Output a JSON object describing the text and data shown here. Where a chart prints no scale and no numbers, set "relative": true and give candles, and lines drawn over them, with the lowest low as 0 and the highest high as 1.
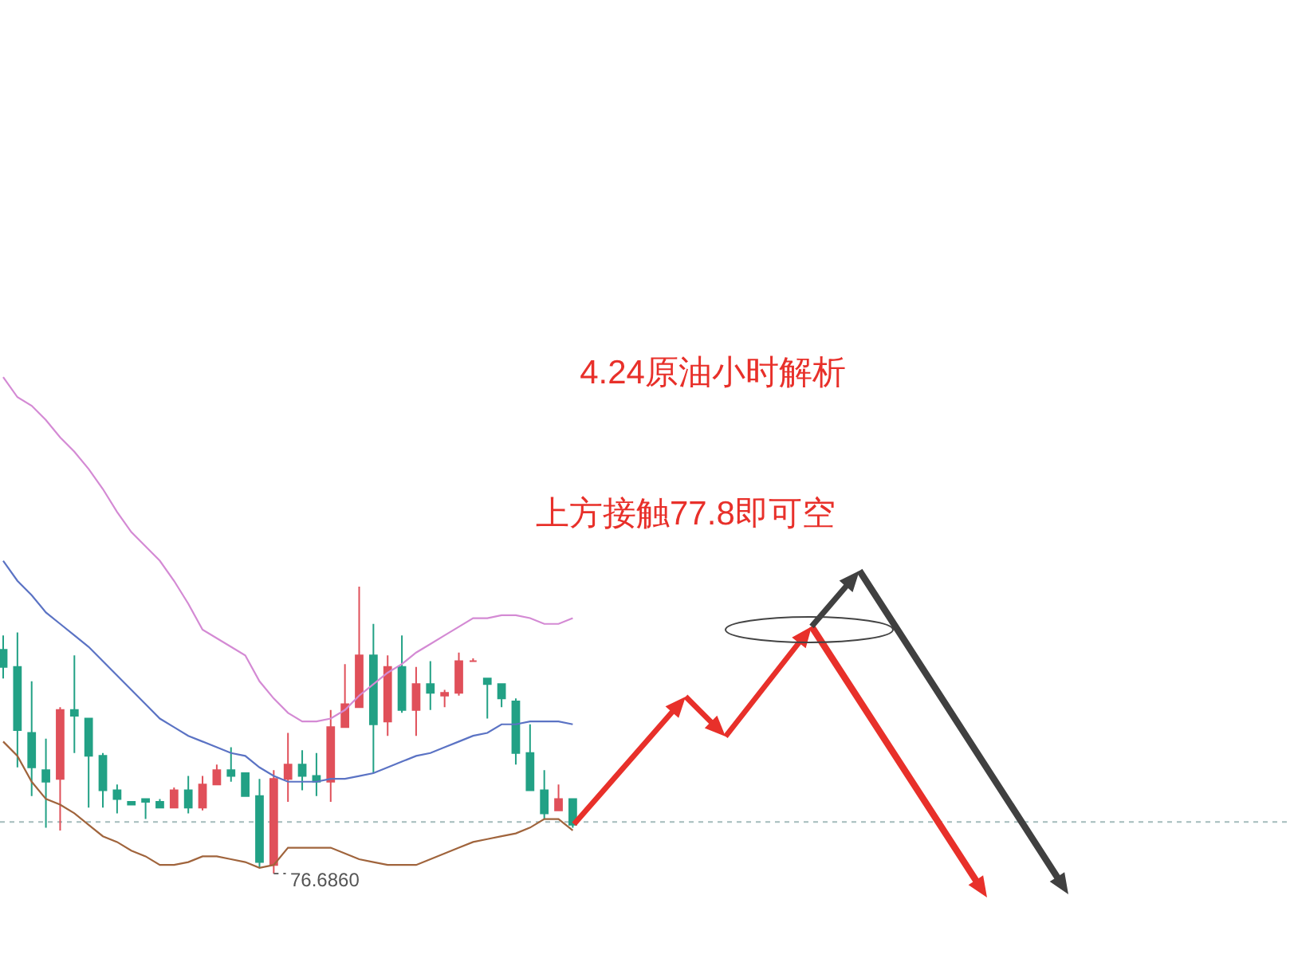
{
  "chart_data": {
    "type": "candlestick",
    "title": "4.24原油小时解析",
    "relative": true,
    "categories": [
      null,
      null,
      null,
      null,
      null,
      null,
      null,
      null,
      null,
      null,
      null,
      null,
      null,
      null,
      null,
      null,
      null,
      null,
      null,
      null,
      null,
      null,
      null,
      null,
      null,
      null,
      null,
      null,
      null,
      null,
      null,
      null,
      null,
      null,
      null,
      null,
      null,
      null,
      null,
      null,
      null
    ],
    "ohlc": [
      [
        0.78,
        0.83,
        0.68,
        0.72
      ],
      [
        0.72,
        0.84,
        0.37,
        0.5
      ],
      [
        0.49,
        0.67,
        0.27,
        0.37
      ],
      [
        0.36,
        0.47,
        0.16,
        0.32
      ],
      [
        0.33,
        0.58,
        0.15,
        0.57
      ],
      [
        0.57,
        0.76,
        0.42,
        0.55
      ],
      [
        0.54,
        0.54,
        0.23,
        0.41
      ],
      [
        0.41,
        0.42,
        0.23,
        0.29
      ],
      [
        0.29,
        0.31,
        0.21,
        0.26
      ],
      [
        0.25,
        0.25,
        0.24,
        0.24
      ],
      [
        0.26,
        0.26,
        0.19,
        0.25
      ],
      [
        0.25,
        0.26,
        0.23,
        0.23
      ],
      [
        0.23,
        0.3,
        0.23,
        0.29
      ],
      [
        0.29,
        0.34,
        0.21,
        0.23
      ],
      [
        0.23,
        0.34,
        0.22,
        0.31
      ],
      [
        0.31,
        0.38,
        0.31,
        0.36
      ],
      [
        0.36,
        0.44,
        0.32,
        0.34
      ],
      [
        0.35,
        0.35,
        0.27,
        0.27
      ],
      [
        0.27,
        0.33,
        0.02,
        0.04
      ],
      [
        0.03,
        0.36,
        0,
        0.33
      ],
      [
        0.33,
        0.49,
        0.25,
        0.38
      ],
      [
        0.38,
        0.43,
        0.29,
        0.34
      ],
      [
        0.34,
        0.42,
        0.27,
        0.32
      ],
      [
        0.32,
        0.57,
        0.25,
        0.51
      ],
      [
        0.51,
        0.73,
        0.51,
        0.59
      ],
      [
        0.58,
        1,
        0.58,
        0.76
      ],
      [
        0.76,
        0.87,
        0.35,
        0.52
      ],
      [
        0.53,
        0.76,
        0.48,
        0.72
      ],
      [
        0.72,
        0.83,
        0.56,
        0.57
      ],
      [
        0.57,
        0.72,
        0.48,
        0.66
      ],
      [
        0.66,
        0.74,
        0.57,
        0.63
      ],
      [
        0.62,
        0.64,
        0.58,
        0.63
      ],
      [
        0.63,
        0.77,
        0.62,
        0.74
      ],
      [
        0.74,
        0.75,
        0.74,
        0.74
      ],
      [
        0.68,
        0.68,
        0.54,
        0.66
      ],
      [
        0.66,
        0.66,
        0.58,
        0.61
      ],
      [
        0.6,
        0.61,
        0.38,
        0.42
      ],
      [
        0.42,
        0.52,
        0.29,
        0.29
      ],
      [
        0.29,
        0.36,
        0.19,
        0.21
      ],
      [
        0.22,
        0.31,
        0.22,
        0.26
      ],
      [
        0.26,
        0.26,
        0.16,
        0.17
      ]
    ],
    "colors": [
      "#22a185",
      "#22a185",
      "#22a185",
      "#22a185",
      "#e0505a",
      "#22a185",
      "#22a185",
      "#22a185",
      "#22a185",
      "#22a185",
      "#22a185",
      "#22a185",
      "#e0505a",
      "#22a185",
      "#e0505a",
      "#e0505a",
      "#22a185",
      "#22a185",
      "#22a185",
      "#e0505a",
      "#e0505a",
      "#22a185",
      "#22a185",
      "#e0505a",
      "#e0505a",
      "#e0505a",
      "#22a185",
      "#e0505a",
      "#22a185",
      "#e0505a",
      "#22a185",
      "#e0505a",
      "#e0505a",
      "#e0505a",
      "#22a185",
      "#22a185",
      "#22a185",
      "#22a185",
      "#22a185",
      "#e0505a",
      "#22a185"
    ],
    "series": [
      {
        "type": "line",
        "color": "#d48ad4",
        "values": [
          1.73,
          1.66,
          1.63,
          1.58,
          1.52,
          1.47,
          1.41,
          1.34,
          1.26,
          1.19,
          1.14,
          1.09,
          1.02,
          0.94,
          0.85,
          0.82,
          0.79,
          0.76,
          0.67,
          0.61,
          0.56,
          0.53,
          0.53,
          0.54,
          0.57,
          0.62,
          0.66,
          0.7,
          0.73,
          0.77,
          0.8,
          0.83,
          0.86,
          0.89,
          0.89,
          0.9,
          0.9,
          0.89,
          0.87,
          0.87,
          0.89
        ]
      },
      {
        "type": "line",
        "color": "#5b73c4",
        "values": [
          1.09,
          1.02,
          0.97,
          0.91,
          0.87,
          0.83,
          0.79,
          0.74,
          0.69,
          0.64,
          0.59,
          0.54,
          0.51,
          0.48,
          0.46,
          0.44,
          0.42,
          0.41,
          0.37,
          0.34,
          0.32,
          0.32,
          0.32,
          0.33,
          0.33,
          0.34,
          0.35,
          0.37,
          0.39,
          0.41,
          0.42,
          0.44,
          0.46,
          0.48,
          0.49,
          0.52,
          0.52,
          0.53,
          0.53,
          0.53,
          0.52
        ]
      },
      {
        "type": "line",
        "color": "#a0643c",
        "values": [
          0.46,
          0.41,
          0.32,
          0.26,
          0.24,
          0.21,
          0.17,
          0.13,
          0.11,
          0.08,
          0.06,
          0.03,
          0.03,
          0.04,
          0.06,
          0.06,
          0.05,
          0.04,
          0.02,
          0.03,
          0.09,
          0.09,
          0.09,
          0.09,
          0.07,
          0.05,
          0.04,
          0.03,
          0.03,
          0.03,
          0.05,
          0.07,
          0.09,
          0.11,
          0.12,
          0.13,
          0.14,
          0.16,
          0.19,
          0.19,
          0.15
        ]
      }
    ],
    "ref_lines": [
      {
        "axis": "y",
        "value": 0.18,
        "color": "#a4bcbc",
        "line_style": "dashed"
      }
    ],
    "annotations": [
      "上方接触77.8即可空",
      "76.6860"
    ]
  }
}
